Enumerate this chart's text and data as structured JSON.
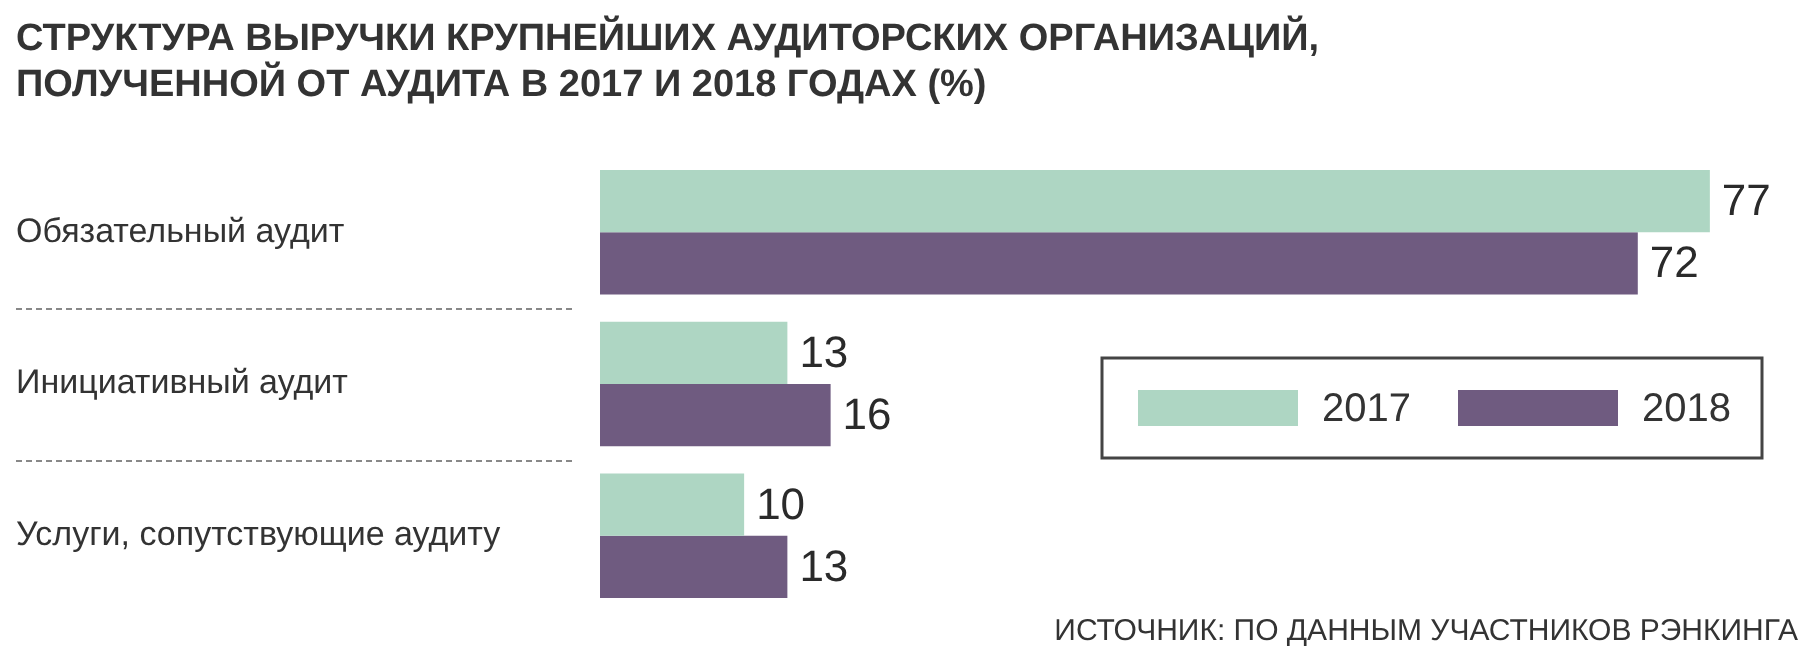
{
  "chart_data": {
    "type": "bar",
    "orientation": "horizontal",
    "title": "СТРУКТУРА ВЫРУЧКИ КРУПНЕЙШИХ АУДИТОРСКИХ ОРГАНИЗАЦИЙ, ПОЛУЧЕННОЙ ОТ АУДИТА В 2017 И 2018 ГОДАХ (%)",
    "categories": [
      "Обязательный аудит",
      "Инициативный аудит",
      "Услуги, сопутствующие аудиту"
    ],
    "series": [
      {
        "name": "2017",
        "color": "#aed6c3",
        "values": [
          77,
          13,
          10
        ]
      },
      {
        "name": "2018",
        "color": "#6f5b80",
        "values": [
          72,
          16,
          13
        ]
      }
    ],
    "data_labels": true,
    "legend": "right",
    "grid": false,
    "tick_labels": "y",
    "annotations": [
      "ИСТОЧНИК: ПО ДАННЫМ УЧАСТНИКОВ РЭНКИНГА"
    ]
  }
}
